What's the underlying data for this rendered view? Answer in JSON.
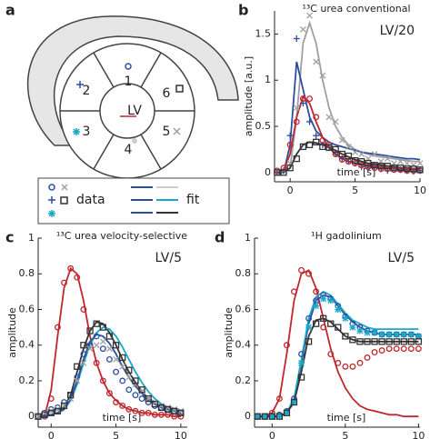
{
  "diagram": {
    "panel": "a",
    "segments": [
      "1",
      "2",
      "3",
      "4",
      "5",
      "6"
    ],
    "center": "LV",
    "legend": [
      "data",
      "fit"
    ]
  },
  "chart_data": [
    {
      "type": "line",
      "panel": "b",
      "title": "¹³C urea conventional",
      "annotation": "LV/20",
      "annotation_color": "#c0272d",
      "xlabel": "time [s]",
      "ylabel": "amplitude [a.u.]",
      "xlim": [
        -1.2,
        10
      ],
      "ylim": [
        -0.1,
        1.75
      ],
      "xticks": [
        0,
        5,
        10
      ],
      "yticks": [
        0,
        0.5,
        1,
        1.5
      ],
      "x": [
        -1,
        -0.5,
        0,
        0.5,
        1,
        1.5,
        2,
        2.5,
        3,
        3.5,
        4,
        4.5,
        5,
        5.5,
        6,
        6.5,
        7,
        7.5,
        8,
        8.5,
        9,
        9.5,
        10
      ],
      "series": [
        {
          "color": "#a0a0a0",
          "values": [
            0,
            0,
            0.05,
            0.6,
            1.4,
            1.62,
            1.4,
            1.0,
            0.7,
            0.5,
            0.38,
            0.3,
            0.25,
            0.22,
            0.2,
            0.18,
            0.17,
            0.16,
            0.15,
            0.14,
            0.13,
            0.12,
            0.12
          ]
        },
        {
          "color": "#2b4ea2",
          "values": [
            0,
            0,
            0.3,
            1.2,
            0.9,
            0.6,
            0.45,
            0.38,
            0.33,
            0.3,
            0.28,
            0.26,
            0.24,
            0.22,
            0.21,
            0.2,
            0.19,
            0.18,
            0.17,
            0.16,
            0.15,
            0.15,
            0.14
          ]
        },
        {
          "color": "#c0272d",
          "values": [
            0,
            0.02,
            0.2,
            0.6,
            0.82,
            0.75,
            0.55,
            0.38,
            0.27,
            0.2,
            0.15,
            0.12,
            0.1,
            0.08,
            0.07,
            0.06,
            0.05,
            0.05,
            0.04,
            0.04,
            0.03,
            0.03,
            0.03
          ]
        },
        {
          "color": "#333333",
          "values": [
            0,
            0,
            0.05,
            0.2,
            0.3,
            0.33,
            0.32,
            0.3,
            0.27,
            0.24,
            0.2,
            0.17,
            0.14,
            0.12,
            0.1,
            0.09,
            0.08,
            0.07,
            0.06,
            0.05,
            0.05,
            0.04,
            0.04
          ]
        },
        {
          "color": "#a0a0a0",
          "marker": "x",
          "values": [
            0,
            0.02,
            0.1,
            0.7,
            1.55,
            1.7,
            1.2,
            1.05,
            0.6,
            0.55,
            0.35,
            0.28,
            0.22,
            0.2,
            0.15,
            0.2,
            0.12,
            0.15,
            0.1,
            0.12,
            0.1,
            0.08,
            0.1
          ]
        },
        {
          "color": "#2b4ea2",
          "marker": "+",
          "values": [
            0,
            0.02,
            0.4,
            1.45,
            0.75,
            0.55,
            0.4,
            0.3,
            0.28,
            0.2,
            0.15,
            0.12,
            0.1,
            0.06,
            0.05,
            0.08,
            0.04,
            0.02,
            0.05,
            0.03,
            0.02,
            0.01,
            0.02
          ]
        },
        {
          "color": "#c0272d",
          "marker": "o",
          "values": [
            0.02,
            0.05,
            0.3,
            0.55,
            0.8,
            0.8,
            0.6,
            0.35,
            0.3,
            0.2,
            0.14,
            0.12,
            0.1,
            0.08,
            0.06,
            0.05,
            0.04,
            0.04,
            0.03,
            0.03,
            0.02,
            0.02,
            0.02
          ]
        },
        {
          "color": "#333333",
          "marker": "s",
          "values": [
            0,
            0,
            0.05,
            0.15,
            0.28,
            0.3,
            0.33,
            0.28,
            0.27,
            0.25,
            0.2,
            0.18,
            0.13,
            0.12,
            0.1,
            0.08,
            0.07,
            0.07,
            0.05,
            0.05,
            0.04,
            0.04,
            0.03
          ]
        }
      ]
    },
    {
      "type": "line",
      "panel": "c",
      "title": "¹³C urea velocity-selective",
      "annotation": "LV/5",
      "annotation_color": "#c0272d",
      "xlabel": "time [s]",
      "ylabel": "amplitude",
      "xlim": [
        -1,
        10.5
      ],
      "ylim": [
        -0.06,
        1.0
      ],
      "xticks": [
        0,
        5,
        10
      ],
      "yticks": [
        0,
        0.2,
        0.4,
        0.6,
        0.8,
        1
      ],
      "x": [
        -1,
        -0.5,
        0,
        0.5,
        1,
        1.5,
        2,
        2.5,
        3,
        3.5,
        4,
        4.5,
        5,
        5.5,
        6,
        6.5,
        7,
        7.5,
        8,
        8.5,
        9,
        9.5,
        10
      ],
      "series": [
        {
          "color": "#c0272d",
          "values": [
            0,
            0,
            0.15,
            0.45,
            0.72,
            0.83,
            0.8,
            0.65,
            0.45,
            0.3,
            0.2,
            0.13,
            0.09,
            0.06,
            0.04,
            0.03,
            0.02,
            0.02,
            0.01,
            0.01,
            0.01,
            0,
            0
          ]
        },
        {
          "color": "#333333",
          "values": [
            0,
            0,
            0.01,
            0.02,
            0.05,
            0.12,
            0.25,
            0.38,
            0.48,
            0.53,
            0.52,
            0.47,
            0.4,
            0.32,
            0.25,
            0.19,
            0.14,
            0.1,
            0.07,
            0.05,
            0.04,
            0.03,
            0.02
          ]
        },
        {
          "color": "#1aa7c9",
          "values": [
            0,
            0,
            0.01,
            0.02,
            0.04,
            0.09,
            0.18,
            0.3,
            0.4,
            0.47,
            0.5,
            0.49,
            0.45,
            0.39,
            0.32,
            0.25,
            0.19,
            0.14,
            0.1,
            0.07,
            0.05,
            0.04,
            0.03
          ]
        },
        {
          "color": "#2b4ea2",
          "values": [
            0,
            0,
            0.01,
            0.02,
            0.04,
            0.1,
            0.2,
            0.32,
            0.42,
            0.46,
            0.45,
            0.41,
            0.35,
            0.28,
            0.22,
            0.17,
            0.13,
            0.09,
            0.07,
            0.05,
            0.04,
            0.03,
            0.02
          ]
        },
        {
          "color": "#c0272d",
          "marker": "o",
          "values": [
            0,
            0,
            0.1,
            0.5,
            0.75,
            0.83,
            0.78,
            0.6,
            0.4,
            0.3,
            0.2,
            0.13,
            0.08,
            0.06,
            0.04,
            0.03,
            0.02,
            0.02,
            0.01,
            0.01,
            0.01,
            0,
            0
          ]
        },
        {
          "color": "#2b4ea2",
          "marker": "o",
          "values": [
            0,
            0.02,
            0.04,
            0.05,
            0.08,
            0.12,
            0.22,
            0.35,
            0.4,
            0.45,
            0.38,
            0.32,
            0.25,
            0.2,
            0.15,
            0.12,
            0.1,
            0.08,
            0.06,
            0.05,
            0.04,
            0.03,
            0.02
          ]
        },
        {
          "color": "#a0a0a0",
          "marker": "x",
          "values": [
            0,
            0.02,
            0.03,
            0.04,
            0.06,
            0.1,
            0.2,
            0.3,
            0.38,
            0.4,
            0.42,
            0.38,
            0.32,
            0.28,
            0.22,
            0.18,
            0.14,
            0.1,
            0.08,
            0.06,
            0.05,
            0.04,
            0.03
          ]
        },
        {
          "color": "#333333",
          "marker": "s",
          "values": [
            0,
            0.01,
            0.02,
            0.03,
            0.06,
            0.12,
            0.28,
            0.4,
            0.48,
            0.52,
            0.5,
            0.45,
            0.4,
            0.33,
            0.26,
            0.2,
            0.15,
            0.1,
            0.07,
            0.05,
            0.04,
            0.03,
            0.02
          ]
        }
      ]
    },
    {
      "type": "line",
      "panel": "d",
      "title": "¹H gadolinium",
      "annotation": "LV/5",
      "annotation_color": "#c0272d",
      "xlabel": "time [s]",
      "ylabel": "amplitude",
      "xlim": [
        -1.2,
        10.1
      ],
      "ylim": [
        -0.06,
        1.0
      ],
      "xticks": [
        0,
        5,
        10
      ],
      "yticks": [
        0,
        0.2,
        0.4,
        0.6,
        0.8,
        1
      ],
      "x": [
        -1,
        -0.5,
        0,
        0.5,
        1,
        1.5,
        2,
        2.5,
        3,
        3.5,
        4,
        4.5,
        5,
        5.5,
        6,
        6.5,
        7,
        7.5,
        8,
        8.5,
        9,
        9.5,
        10
      ],
      "series": [
        {
          "color": "#c0272d",
          "values": [
            0,
            0,
            0.02,
            0.1,
            0.35,
            0.65,
            0.8,
            0.82,
            0.72,
            0.55,
            0.38,
            0.25,
            0.16,
            0.1,
            0.06,
            0.04,
            0.03,
            0.02,
            0.01,
            0.01,
            0,
            0,
            0
          ]
        },
        {
          "color": "#2b4ea2",
          "values": [
            0,
            0,
            0,
            0,
            0.02,
            0.1,
            0.3,
            0.52,
            0.65,
            0.68,
            0.67,
            0.62,
            0.57,
            0.53,
            0.5,
            0.48,
            0.47,
            0.46,
            0.46,
            0.46,
            0.46,
            0.46,
            0.46
          ]
        },
        {
          "color": "#1aa7c9",
          "values": [
            0,
            0,
            0,
            0,
            0.02,
            0.1,
            0.32,
            0.55,
            0.67,
            0.7,
            0.68,
            0.63,
            0.58,
            0.54,
            0.52,
            0.5,
            0.49,
            0.49,
            0.49,
            0.49,
            0.49,
            0.49,
            0.49
          ]
        },
        {
          "color": "#333333",
          "values": [
            0,
            0,
            0,
            0,
            0.02,
            0.08,
            0.25,
            0.45,
            0.54,
            0.55,
            0.53,
            0.49,
            0.45,
            0.43,
            0.42,
            0.42,
            0.42,
            0.42,
            0.42,
            0.42,
            0.42,
            0.42,
            0.42
          ]
        },
        {
          "color": "#c0272d",
          "marker": "o",
          "values": [
            0,
            0,
            0.02,
            0.1,
            0.4,
            0.7,
            0.82,
            0.8,
            0.7,
            0.5,
            0.35,
            0.3,
            0.28,
            0.28,
            0.3,
            0.33,
            0.36,
            0.37,
            0.38,
            0.38,
            0.38,
            0.38,
            0.38
          ]
        },
        {
          "color": "#2b4ea2",
          "marker": "o",
          "values": [
            0,
            0,
            0,
            0.01,
            0.03,
            0.1,
            0.35,
            0.55,
            0.65,
            0.68,
            0.66,
            0.62,
            0.56,
            0.52,
            0.5,
            0.48,
            0.47,
            0.46,
            0.46,
            0.46,
            0.46,
            0.46,
            0.45
          ]
        },
        {
          "color": "#1aa7c9",
          "marker": "*",
          "values": [
            0,
            0,
            0,
            0,
            0.02,
            0.08,
            0.3,
            0.5,
            0.62,
            0.66,
            0.65,
            0.6,
            0.55,
            0.5,
            0.48,
            0.47,
            0.47,
            0.46,
            0.46,
            0.46,
            0.46,
            0.46,
            0.45
          ]
        },
        {
          "color": "#333333",
          "marker": "s",
          "values": [
            0,
            0,
            0,
            0,
            0.02,
            0.08,
            0.22,
            0.42,
            0.52,
            0.55,
            0.52,
            0.5,
            0.45,
            0.43,
            0.42,
            0.42,
            0.42,
            0.42,
            0.42,
            0.42,
            0.42,
            0.42,
            0.42
          ]
        }
      ]
    }
  ]
}
